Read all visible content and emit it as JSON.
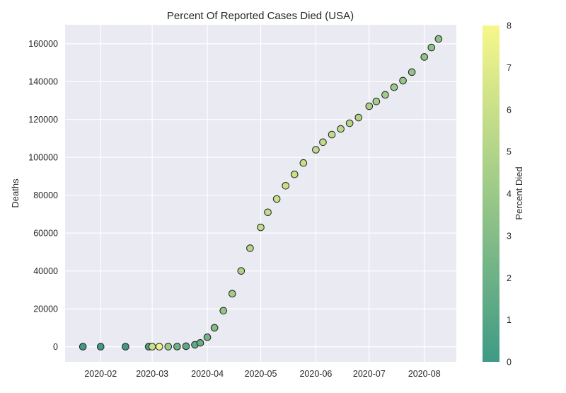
{
  "chart_data": {
    "type": "scatter",
    "title": "Percent Of Reported Cases Died (USA)",
    "xlabel": "",
    "ylabel": "Deaths",
    "x_is_date": true,
    "xlim": [
      "2020-01-12",
      "2020-08-19"
    ],
    "ylim": [
      -8000,
      170000
    ],
    "x_ticks": [
      "2020-02",
      "2020-03",
      "2020-04",
      "2020-05",
      "2020-06",
      "2020-07",
      "2020-08"
    ],
    "y_ticks": [
      0,
      20000,
      40000,
      60000,
      80000,
      100000,
      120000,
      140000,
      160000
    ],
    "grid": true,
    "colorbar": {
      "label": "Percent Died",
      "min": 0,
      "max": 8,
      "ticks": [
        0,
        1,
        2,
        3,
        4,
        5,
        6,
        7,
        8
      ],
      "colormap": "summer",
      "color_low": "#3f9a86",
      "color_high": "#f7f78a"
    },
    "series": [
      {
        "points": [
          {
            "x": "2020-01-22",
            "y": 0,
            "c": 0.0
          },
          {
            "x": "2020-02-01",
            "y": 0,
            "c": 0.0
          },
          {
            "x": "2020-02-15",
            "y": 0,
            "c": 0.0
          },
          {
            "x": "2020-02-28",
            "y": 0,
            "c": 0.5
          },
          {
            "x": "2020-03-01",
            "y": 1,
            "c": 6.0
          },
          {
            "x": "2020-03-05",
            "y": 11,
            "c": 7.5
          },
          {
            "x": "2020-03-10",
            "y": 28,
            "c": 4.0
          },
          {
            "x": "2020-03-15",
            "y": 60,
            "c": 2.0
          },
          {
            "x": "2020-03-20",
            "y": 250,
            "c": 1.3
          },
          {
            "x": "2020-03-25",
            "y": 1000,
            "c": 1.4
          },
          {
            "x": "2020-03-28",
            "y": 2000,
            "c": 1.7
          },
          {
            "x": "2020-04-01",
            "y": 5000,
            "c": 2.3
          },
          {
            "x": "2020-04-05",
            "y": 10000,
            "c": 2.9
          },
          {
            "x": "2020-04-10",
            "y": 19000,
            "c": 3.7
          },
          {
            "x": "2020-04-15",
            "y": 28000,
            "c": 4.3
          },
          {
            "x": "2020-04-20",
            "y": 40000,
            "c": 4.8
          },
          {
            "x": "2020-04-25",
            "y": 52000,
            "c": 5.2
          },
          {
            "x": "2020-05-01",
            "y": 63000,
            "c": 5.6
          },
          {
            "x": "2020-05-05",
            "y": 71000,
            "c": 5.8
          },
          {
            "x": "2020-05-10",
            "y": 78000,
            "c": 5.9
          },
          {
            "x": "2020-05-15",
            "y": 85000,
            "c": 6.0
          },
          {
            "x": "2020-05-20",
            "y": 91000,
            "c": 6.0
          },
          {
            "x": "2020-05-25",
            "y": 97000,
            "c": 5.9
          },
          {
            "x": "2020-06-01",
            "y": 104000,
            "c": 5.8
          },
          {
            "x": "2020-06-05",
            "y": 108000,
            "c": 5.6
          },
          {
            "x": "2020-06-10",
            "y": 112000,
            "c": 5.5
          },
          {
            "x": "2020-06-15",
            "y": 115000,
            "c": 5.3
          },
          {
            "x": "2020-06-20",
            "y": 118000,
            "c": 5.1
          },
          {
            "x": "2020-06-25",
            "y": 121000,
            "c": 4.9
          },
          {
            "x": "2020-07-01",
            "y": 127000,
            "c": 4.6
          },
          {
            "x": "2020-07-05",
            "y": 129500,
            "c": 4.4
          },
          {
            "x": "2020-07-10",
            "y": 133000,
            "c": 4.2
          },
          {
            "x": "2020-07-15",
            "y": 137000,
            "c": 4.0
          },
          {
            "x": "2020-07-20",
            "y": 140500,
            "c": 3.8
          },
          {
            "x": "2020-07-25",
            "y": 145000,
            "c": 3.6
          },
          {
            "x": "2020-08-01",
            "y": 153000,
            "c": 3.5
          },
          {
            "x": "2020-08-05",
            "y": 158000,
            "c": 3.4
          },
          {
            "x": "2020-08-09",
            "y": 162500,
            "c": 3.3
          }
        ]
      }
    ]
  }
}
